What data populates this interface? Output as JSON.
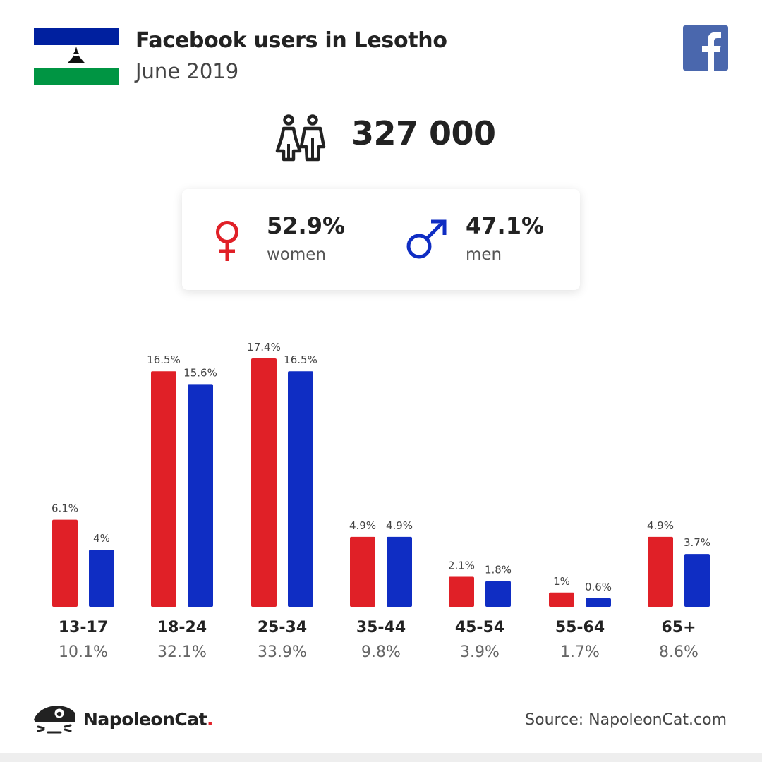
{
  "header": {
    "title": "Facebook users in Lesotho",
    "date": "June 2019"
  },
  "total_users": "327 000",
  "gender": {
    "women_pct": "52.9%",
    "women_label": "women",
    "men_pct": "47.1%",
    "men_label": "men"
  },
  "colors": {
    "women": "#e02027",
    "men": "#0f2dc3",
    "flag_blue": "#00209f",
    "flag_green": "#009543",
    "facebook": "#4a67ad"
  },
  "icons": [
    "lesotho-flag-icon",
    "facebook-icon",
    "users-icon",
    "female-icon",
    "male-icon",
    "napoleoncat-logo-icon"
  ],
  "chart_data": {
    "type": "bar",
    "categories": [
      "13-17",
      "18-24",
      "25-34",
      "35-44",
      "45-54",
      "55-64",
      "65+"
    ],
    "category_totals": [
      "10.1%",
      "32.1%",
      "33.9%",
      "9.8%",
      "3.9%",
      "1.7%",
      "8.6%"
    ],
    "series": [
      {
        "name": "women",
        "values": [
          6.1,
          16.5,
          17.4,
          4.9,
          2.1,
          1,
          4.9
        ],
        "labels": [
          "6.1%",
          "16.5%",
          "17.4%",
          "4.9%",
          "2.1%",
          "1%",
          "4.9%"
        ]
      },
      {
        "name": "men",
        "values": [
          4,
          15.6,
          16.5,
          4.9,
          1.8,
          0.6,
          3.7
        ],
        "labels": [
          "4%",
          "15.6%",
          "16.5%",
          "4.9%",
          "1.8%",
          "0.6%",
          "3.7%"
        ]
      }
    ],
    "unit": "%",
    "ylim": [
      0,
      17.4
    ],
    "grid": false,
    "legend": "none"
  },
  "footer": {
    "brand": "NapoleonCat",
    "brand_dot": ".",
    "source": "Source: NapoleonCat.com"
  }
}
